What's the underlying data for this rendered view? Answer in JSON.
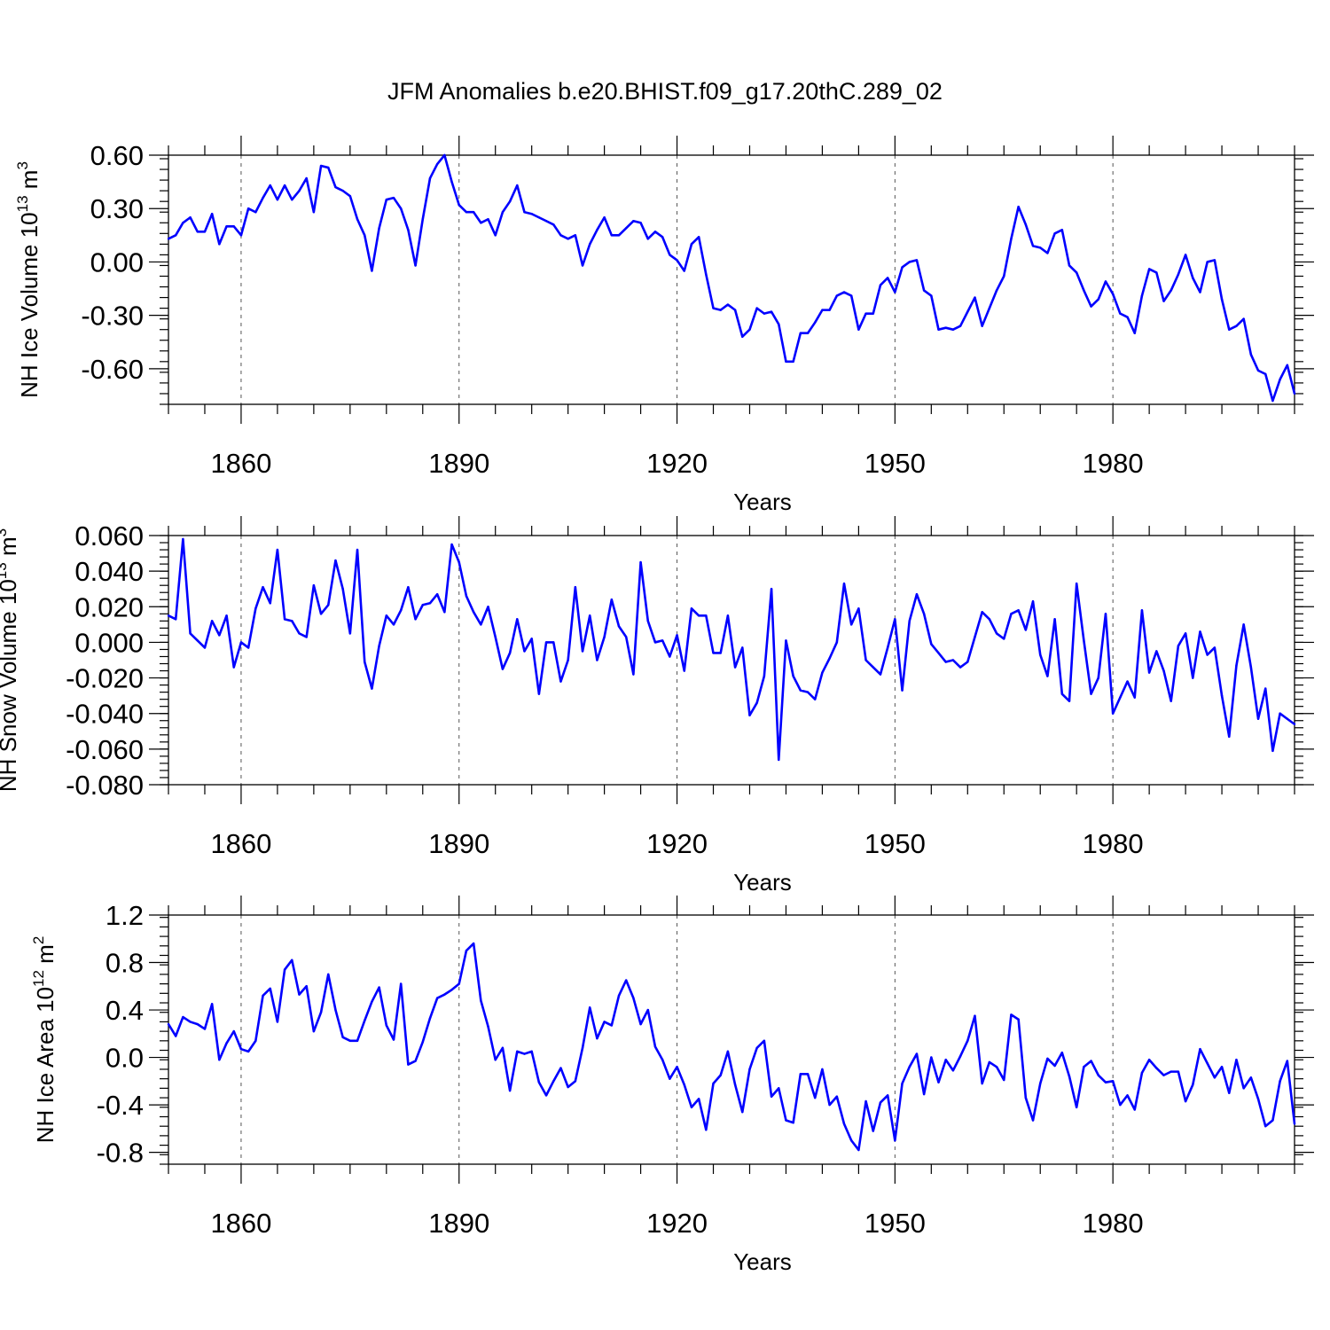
{
  "figure_title": "JFM Anomalies b.e20.BHIST.f09_g17.20thC.289_02",
  "series_color": "#0000ff",
  "chart_data": [
    {
      "type": "line",
      "title": "",
      "xlabel": "Years",
      "ylabel": "NH Ice Volume 10",
      "ylabel_exponent": "13",
      "ylabel_unit": "m",
      "ylabel_unit_exponent": "3",
      "x_start": 1850,
      "xlim": [
        1850,
        2005
      ],
      "ylim": [
        -0.8,
        0.6
      ],
      "yticks": [
        0.6,
        0.3,
        0.0,
        -0.3,
        -0.6
      ],
      "ytick_labels": [
        "0.60",
        "0.30",
        "0.00",
        "-0.30",
        "-0.60"
      ],
      "xticks": [
        1860,
        1890,
        1920,
        1950,
        1980
      ],
      "xtick_labels": [
        "1860",
        "1890",
        "1920",
        "1950",
        "1980"
      ],
      "values": [
        0.13,
        0.15,
        0.22,
        0.25,
        0.17,
        0.17,
        0.27,
        0.1,
        0.2,
        0.2,
        0.15,
        0.3,
        0.28,
        0.36,
        0.43,
        0.35,
        0.43,
        0.35,
        0.4,
        0.47,
        0.28,
        0.54,
        0.53,
        0.42,
        0.4,
        0.37,
        0.24,
        0.15,
        -0.05,
        0.19,
        0.35,
        0.36,
        0.3,
        0.18,
        -0.02,
        0.24,
        0.47,
        0.55,
        0.6,
        0.45,
        0.32,
        0.28,
        0.28,
        0.22,
        0.24,
        0.15,
        0.28,
        0.34,
        0.43,
        0.28,
        0.27,
        0.25,
        0.23,
        0.21,
        0.15,
        0.13,
        0.15,
        -0.02,
        0.1,
        0.18,
        0.25,
        0.15,
        0.15,
        0.19,
        0.23,
        0.22,
        0.13,
        0.17,
        0.14,
        0.04,
        0.01,
        -0.05,
        0.1,
        0.14,
        -0.07,
        -0.26,
        -0.27,
        -0.24,
        -0.27,
        -0.42,
        -0.38,
        -0.26,
        -0.29,
        -0.28,
        -0.35,
        -0.56,
        -0.56,
        -0.4,
        -0.4,
        -0.34,
        -0.27,
        -0.27,
        -0.19,
        -0.17,
        -0.19,
        -0.38,
        -0.29,
        -0.29,
        -0.13,
        -0.09,
        -0.17,
        -0.03,
        0.0,
        0.01,
        -0.16,
        -0.19,
        -0.38,
        -0.37,
        -0.38,
        -0.36,
        -0.28,
        -0.2,
        -0.36,
        -0.26,
        -0.16,
        -0.08,
        0.13,
        0.31,
        0.21,
        0.09,
        0.08,
        0.05,
        0.16,
        0.18,
        -0.02,
        -0.06,
        -0.16,
        -0.25,
        -0.21,
        -0.11,
        -0.18,
        -0.29,
        -0.31,
        -0.4,
        -0.19,
        -0.04,
        -0.06,
        -0.22,
        -0.16,
        -0.07,
        0.04,
        -0.09,
        -0.17,
        0.0,
        0.01,
        -0.21,
        -0.38,
        -0.36,
        -0.32,
        -0.52,
        -0.61,
        -0.63,
        -0.78,
        -0.66,
        -0.58,
        -0.74
      ]
    },
    {
      "type": "line",
      "title": "",
      "xlabel": "Years",
      "ylabel": "NH Snow Volume 10",
      "ylabel_exponent": "13",
      "ylabel_unit": "m",
      "ylabel_unit_exponent": "3",
      "x_start": 1850,
      "xlim": [
        1850,
        2005
      ],
      "ylim": [
        -0.08,
        0.06
      ],
      "yticks": [
        0.06,
        0.04,
        0.02,
        0.0,
        -0.02,
        -0.04,
        -0.06,
        -0.08
      ],
      "ytick_labels": [
        "0.060",
        "0.040",
        "0.020",
        "0.000",
        "-0.020",
        "-0.040",
        "-0.060",
        "-0.080"
      ],
      "xticks": [
        1860,
        1890,
        1920,
        1950,
        1980
      ],
      "xtick_labels": [
        "1860",
        "1890",
        "1920",
        "1950",
        "1980"
      ],
      "values": [
        0.015,
        0.013,
        0.058,
        0.005,
        0.001,
        -0.003,
        0.012,
        0.004,
        0.015,
        -0.014,
        0.0,
        -0.003,
        0.019,
        0.031,
        0.022,
        0.052,
        0.013,
        0.012,
        0.005,
        0.003,
        0.032,
        0.016,
        0.021,
        0.046,
        0.03,
        0.005,
        0.052,
        -0.011,
        -0.026,
        -0.002,
        0.015,
        0.01,
        0.018,
        0.031,
        0.013,
        0.021,
        0.022,
        0.027,
        0.017,
        0.055,
        0.045,
        0.026,
        0.017,
        0.01,
        0.02,
        0.003,
        -0.015,
        -0.006,
        0.013,
        -0.005,
        0.002,
        -0.029,
        0.0,
        0.0,
        -0.022,
        -0.01,
        0.031,
        -0.005,
        0.015,
        -0.01,
        0.003,
        0.024,
        0.009,
        0.003,
        -0.018,
        0.045,
        0.012,
        0.0,
        0.001,
        -0.008,
        0.004,
        -0.016,
        0.019,
        0.015,
        0.015,
        -0.006,
        -0.006,
        0.015,
        -0.014,
        -0.003,
        -0.041,
        -0.034,
        -0.019,
        0.03,
        -0.066,
        0.001,
        -0.019,
        -0.027,
        -0.028,
        -0.032,
        -0.017,
        -0.009,
        0.0,
        0.033,
        0.01,
        0.019,
        -0.01,
        -0.014,
        -0.018,
        -0.003,
        0.013,
        -0.027,
        0.012,
        0.027,
        0.016,
        -0.001,
        -0.006,
        -0.011,
        -0.01,
        -0.014,
        -0.011,
        0.003,
        0.017,
        0.013,
        0.005,
        0.002,
        0.016,
        0.018,
        0.007,
        0.023,
        -0.007,
        -0.019,
        0.013,
        -0.029,
        -0.033,
        0.033,
        0.001,
        -0.029,
        -0.02,
        0.016,
        -0.04,
        -0.031,
        -0.022,
        -0.031,
        0.018,
        -0.017,
        -0.005,
        -0.016,
        -0.033,
        -0.002,
        0.005,
        -0.02,
        0.006,
        -0.007,
        -0.003,
        -0.03,
        -0.053,
        -0.013,
        0.01,
        -0.014,
        -0.043,
        -0.026,
        -0.061,
        -0.04,
        -0.043,
        -0.046
      ]
    },
    {
      "type": "line",
      "title": "",
      "xlabel": "Years",
      "ylabel": "NH Ice Area 10",
      "ylabel_exponent": "12",
      "ylabel_unit": "m",
      "ylabel_unit_exponent": "2",
      "x_start": 1850,
      "xlim": [
        1850,
        2005
      ],
      "ylim": [
        -0.9,
        1.2
      ],
      "yticks": [
        1.2,
        0.8,
        0.4,
        0.0,
        -0.4,
        -0.8
      ],
      "ytick_labels": [
        "1.2",
        "0.8",
        "0.4",
        "0.0",
        "-0.4",
        "-0.8"
      ],
      "xticks": [
        1860,
        1890,
        1920,
        1950,
        1980
      ],
      "xtick_labels": [
        "1860",
        "1890",
        "1920",
        "1950",
        "1980"
      ],
      "values": [
        0.28,
        0.18,
        0.34,
        0.3,
        0.28,
        0.24,
        0.45,
        -0.02,
        0.12,
        0.22,
        0.07,
        0.05,
        0.14,
        0.52,
        0.58,
        0.3,
        0.74,
        0.82,
        0.53,
        0.6,
        0.22,
        0.38,
        0.7,
        0.4,
        0.17,
        0.14,
        0.14,
        0.31,
        0.47,
        0.59,
        0.27,
        0.15,
        0.62,
        -0.06,
        -0.03,
        0.13,
        0.33,
        0.5,
        0.53,
        0.57,
        0.62,
        0.9,
        0.96,
        0.48,
        0.26,
        -0.02,
        0.08,
        -0.28,
        0.05,
        0.03,
        0.05,
        -0.21,
        -0.32,
        -0.2,
        -0.09,
        -0.25,
        -0.2,
        0.08,
        0.42,
        0.16,
        0.3,
        0.27,
        0.52,
        0.65,
        0.5,
        0.28,
        0.4,
        0.09,
        -0.02,
        -0.18,
        -0.08,
        -0.23,
        -0.42,
        -0.35,
        -0.61,
        -0.22,
        -0.15,
        0.05,
        -0.23,
        -0.46,
        -0.1,
        0.08,
        0.14,
        -0.33,
        -0.26,
        -0.53,
        -0.55,
        -0.14,
        -0.14,
        -0.34,
        -0.1,
        -0.4,
        -0.33,
        -0.56,
        -0.7,
        -0.78,
        -0.37,
        -0.62,
        -0.38,
        -0.32,
        -0.7,
        -0.22,
        -0.08,
        0.03,
        -0.31,
        0.0,
        -0.21,
        -0.02,
        -0.11,
        0.01,
        0.14,
        0.35,
        -0.22,
        -0.04,
        -0.08,
        -0.19,
        0.36,
        0.32,
        -0.34,
        -0.53,
        -0.22,
        -0.01,
        -0.07,
        0.04,
        -0.16,
        -0.42,
        -0.08,
        -0.03,
        -0.15,
        -0.21,
        -0.2,
        -0.4,
        -0.32,
        -0.44,
        -0.13,
        -0.02,
        -0.09,
        -0.15,
        -0.12,
        -0.12,
        -0.37,
        -0.23,
        0.07,
        -0.05,
        -0.17,
        -0.08,
        -0.3,
        -0.02,
        -0.26,
        -0.17,
        -0.35,
        -0.58,
        -0.53,
        -0.2,
        -0.03,
        -0.56
      ]
    }
  ]
}
